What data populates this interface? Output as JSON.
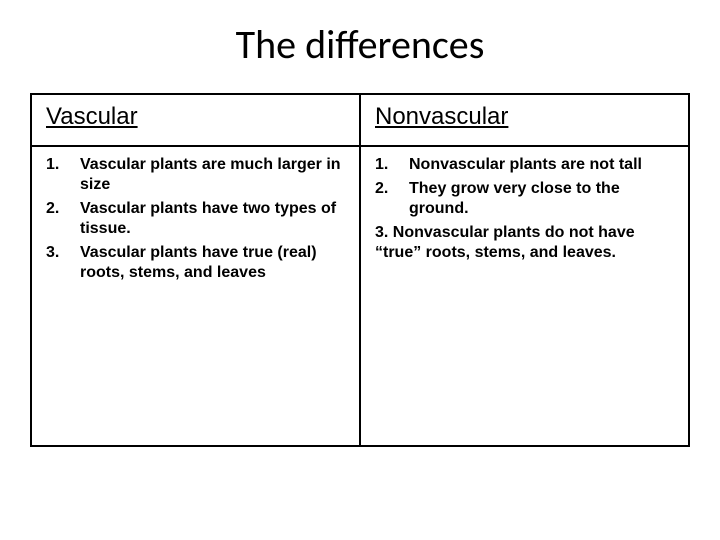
{
  "title": "The differences",
  "columns": {
    "left": {
      "header": "Vascular",
      "items": [
        {
          "num": "1.",
          "text": "Vascular plants are much larger in size"
        },
        {
          "num": "2.",
          "text": "Vascular plants have two types of tissue."
        },
        {
          "num": "3.",
          "text": "Vascular plants have true (real) roots, stems, and leaves"
        }
      ]
    },
    "right": {
      "header": "Nonvascular",
      "items": [
        {
          "num": "1.",
          "text": "Nonvascular plants are not tall"
        },
        {
          "num": "2.",
          "text": "They grow very close to the ground."
        }
      ],
      "extra": "3.    Nonvascular plants do not have “true” roots, stems, and leaves."
    }
  },
  "colors": {
    "background": "#ffffff",
    "text": "#000000",
    "border": "#000000"
  },
  "fonts": {
    "title_family": "Calibri",
    "title_size_pt": 40,
    "header_family": "Arial",
    "header_size_pt": 24,
    "body_family": "Arial",
    "body_size_pt": 16,
    "body_weight": "bold"
  },
  "layout": {
    "slide_width": 720,
    "slide_height": 540,
    "columns_count": 2,
    "header_underline": true
  }
}
